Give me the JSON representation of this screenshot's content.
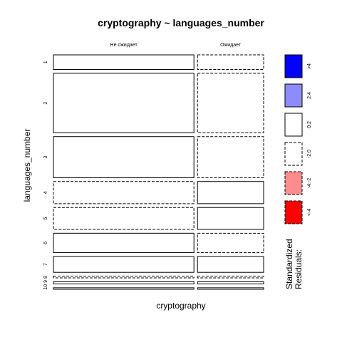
{
  "chart_data": {
    "type": "mosaic",
    "title": "cryptography ~ languages_number",
    "xlabel": "cryptography",
    "ylabel": "languages_number",
    "columns": [
      "Не ожидает",
      "Ожидает"
    ],
    "rows": [
      "1",
      "2",
      "3",
      "4",
      "5",
      "6",
      "7",
      "8",
      "9",
      "10"
    ],
    "row_label_stack": "10 9 8",
    "row_proportions": [
      0.058,
      0.236,
      0.163,
      0.088,
      0.087,
      0.077,
      0.063,
      0.007,
      0.009,
      0.006
    ],
    "column_share_within_row": [
      [
        0.68,
        0.32
      ],
      [
        0.68,
        0.32
      ],
      [
        0.68,
        0.32
      ],
      [
        0.68,
        0.32
      ],
      [
        0.68,
        0.32
      ],
      [
        0.68,
        0.32
      ],
      [
        0.68,
        0.32
      ],
      [
        0.68,
        0.32
      ],
      [
        0.68,
        0.32
      ],
      [
        0.68,
        0.32
      ]
    ],
    "residual_class": [
      [
        "0:2",
        "-2:0"
      ],
      [
        "0:2",
        "-2:0"
      ],
      [
        "0:2",
        "-2:0"
      ],
      [
        "-2:0",
        "0:2"
      ],
      [
        "-2:0",
        "0:2"
      ],
      [
        "0:2",
        "-2:0"
      ],
      [
        "0:2",
        "0:2"
      ],
      [
        "-2:0",
        "-2:0"
      ],
      [
        "0:2",
        "0:2"
      ],
      [
        "0:2",
        "0:2"
      ]
    ],
    "legend": {
      "title": "Standardized\nResiduals:",
      "title_lines": [
        "Standardized",
        "Residuals:"
      ],
      "entries": [
        {
          "label": ">4",
          "fill": "#0000ff",
          "dashed": false
        },
        {
          "label": "2:4",
          "fill": "#8c8cff",
          "dashed": false
        },
        {
          "label": "0:2",
          "fill": "#ffffff",
          "dashed": false
        },
        {
          "label": "-2:0",
          "fill": "#ffffff",
          "dashed": true
        },
        {
          "label": "-4:-2",
          "fill": "#ff8c8c",
          "dashed": true
        },
        {
          "label": "<-4",
          "fill": "#ff0000",
          "dashed": true
        }
      ]
    }
  }
}
